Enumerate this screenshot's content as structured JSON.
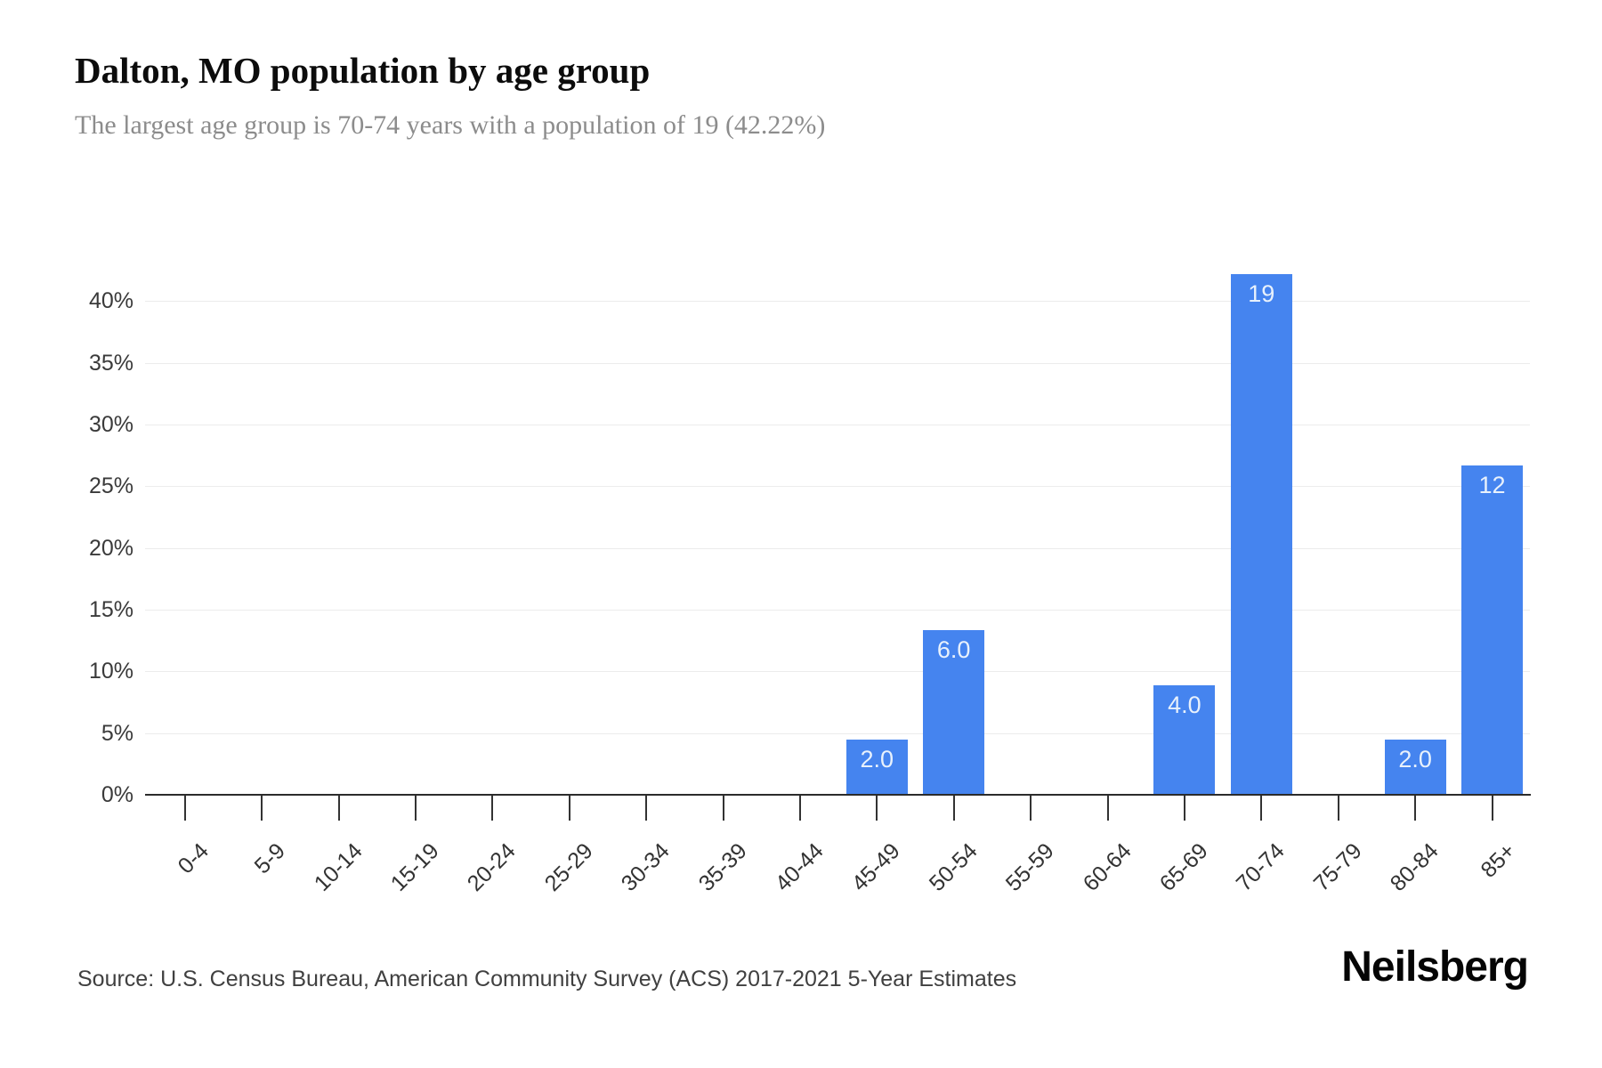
{
  "header": {
    "title": "Dalton, MO population by age group",
    "subtitle": "The largest age group is 70-74 years with a population of 19 (42.22%)"
  },
  "footer": {
    "source": "Source: U.S. Census Bureau, American Community Survey (ACS) 2017-2021 5-Year Estimates",
    "brand": "Neilsberg"
  },
  "chart_data": {
    "type": "bar",
    "title": "Dalton, MO population by age group",
    "xlabel": "",
    "ylabel": "",
    "categories": [
      "0-4",
      "5-9",
      "10-14",
      "15-19",
      "20-24",
      "25-29",
      "30-34",
      "35-39",
      "40-44",
      "45-49",
      "50-54",
      "55-59",
      "60-64",
      "65-69",
      "70-74",
      "75-79",
      "80-84",
      "85+"
    ],
    "counts": [
      0,
      0,
      0,
      0,
      0,
      0,
      0,
      0,
      0,
      2,
      6,
      0,
      0,
      4,
      19,
      0,
      2,
      12
    ],
    "percents": [
      0,
      0,
      0,
      0,
      0,
      0,
      0,
      0,
      0,
      4.44,
      13.33,
      0,
      0,
      8.89,
      42.22,
      0,
      4.44,
      26.67
    ],
    "bar_labels": [
      "",
      "",
      "",
      "",
      "",
      "",
      "",
      "",
      "",
      "2.0",
      "6.0",
      "",
      "",
      "4.0",
      "19",
      "",
      "2.0",
      "12"
    ],
    "y_ticks": [
      "0%",
      "5%",
      "10%",
      "15%",
      "20%",
      "25%",
      "30%",
      "35%",
      "40%"
    ],
    "ylim": [
      0,
      45
    ],
    "grid": true,
    "legend": false,
    "bar_color": "#4584ef",
    "bar_label_color": "#e8f1fc",
    "axis_color": "#2b2b2b",
    "gridline_color": "#ececec"
  }
}
